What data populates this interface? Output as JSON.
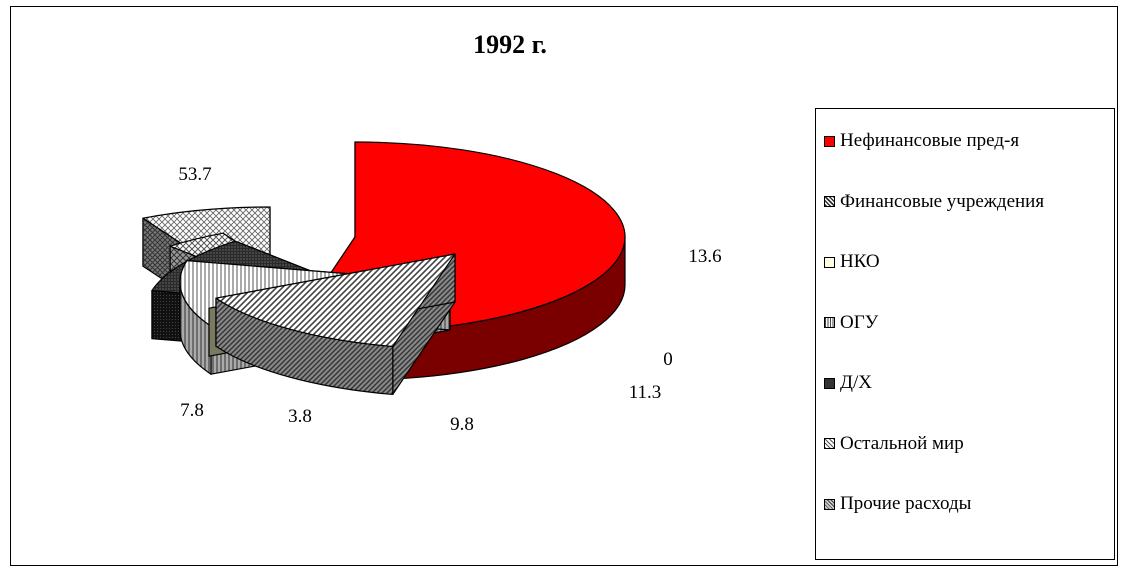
{
  "chart_data": {
    "type": "pie",
    "title": "1992 г.",
    "three_d": true,
    "exploded": true,
    "legend_position": "right",
    "categories": [
      "Нефинансовые пред-я",
      "Финансовые учреждения",
      "НКО",
      "ОГУ",
      "Д/Х",
      "Остальной  мир",
      "Прочие расходы"
    ],
    "values": [
      53.7,
      13.6,
      0,
      11.3,
      9.8,
      3.8,
      7.8
    ],
    "value_labels": [
      "53.7",
      "13.6",
      "0",
      "11.3",
      "9.8",
      "3.8",
      "7.8"
    ],
    "colors": [
      "#ff0000",
      "#c8c8c8",
      "#ffffe0",
      "#b0b0b0",
      "#3a3a3a",
      "#d8d8d8",
      "#9a9a9a"
    ],
    "side_colors": [
      "#7a0000",
      "#5a5a5a",
      "#7a7a60",
      "#6a6a6a",
      "#101010",
      "#6a6a6a",
      "#4a4a4a"
    ],
    "patterns": [
      "solid",
      "hatch-diag",
      "solid",
      "vertical-lines",
      "dots-dark",
      "diamond",
      "hatch-cross"
    ]
  }
}
